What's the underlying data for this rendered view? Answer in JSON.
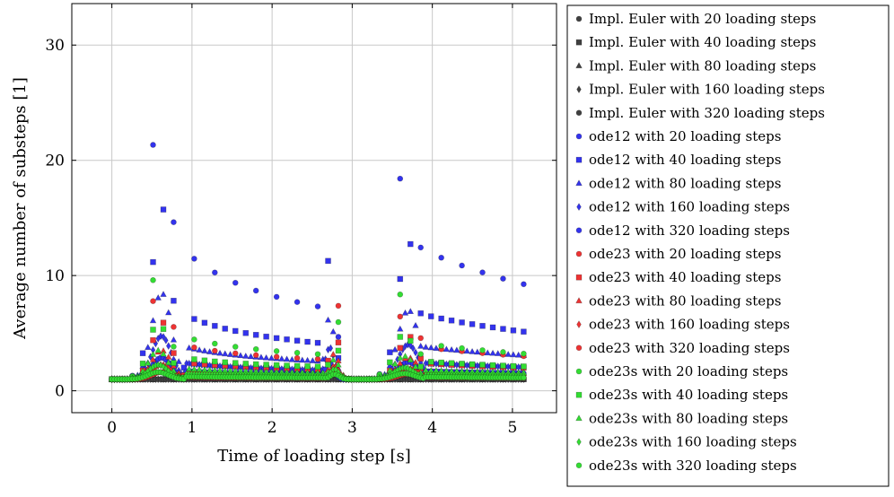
{
  "chart_data": {
    "type": "scatter",
    "xlabel": "Time of loading step [s]",
    "ylabel": "Average number of substeps [1]",
    "xlim": [
      -0.5,
      5.55
    ],
    "ylim": [
      -1.9,
      33.6
    ],
    "xticks": [
      0,
      1,
      2,
      3,
      4,
      5
    ],
    "yticks": [
      0,
      10,
      20,
      30
    ],
    "grid": true,
    "legend": "outside-right",
    "colors": {
      "impl": "#404040",
      "ode12": "#3333ee",
      "ode23": "#ee3333",
      "ode23s": "#33dd33"
    },
    "series": [
      {
        "name": "Impl. Euler with 20 loading steps",
        "color": "impl",
        "marker": "circle",
        "steps": 20,
        "x": [],
        "y": []
      },
      {
        "name": "Impl. Euler with 40 loading steps",
        "color": "impl",
        "marker": "square",
        "steps": 40,
        "x": [],
        "y": []
      },
      {
        "name": "Impl. Euler with 80 loading steps",
        "color": "impl",
        "marker": "triangle",
        "steps": 80,
        "x": [],
        "y": []
      },
      {
        "name": "Impl. Euler with 160 loading steps",
        "color": "impl",
        "marker": "diamond",
        "steps": 160,
        "x": [],
        "y": []
      },
      {
        "name": "Impl. Euler with 320 loading steps",
        "color": "impl",
        "marker": "pentagon",
        "steps": 320,
        "x": [],
        "y": []
      },
      {
        "name": "ode12 with 20 loading steps",
        "color": "ode12",
        "marker": "circle",
        "steps": 20,
        "x": [],
        "y": []
      },
      {
        "name": "ode12 with 40 loading steps",
        "color": "ode12",
        "marker": "square",
        "steps": 40,
        "x": [],
        "y": []
      },
      {
        "name": "ode12 with 80 loading steps",
        "color": "ode12",
        "marker": "triangle",
        "steps": 80,
        "x": [],
        "y": []
      },
      {
        "name": "ode12 with 160 loading steps",
        "color": "ode12",
        "marker": "diamond",
        "steps": 160,
        "x": [],
        "y": []
      },
      {
        "name": "ode12 with 320 loading steps",
        "color": "ode12",
        "marker": "pentagon",
        "steps": 320,
        "x": [],
        "y": []
      },
      {
        "name": "ode23 with 20 loading steps",
        "color": "ode23",
        "marker": "circle",
        "steps": 20,
        "x": [],
        "y": []
      },
      {
        "name": "ode23 with 40 loading steps",
        "color": "ode23",
        "marker": "square",
        "steps": 40,
        "x": [],
        "y": []
      },
      {
        "name": "ode23 with 80 loading steps",
        "color": "ode23",
        "marker": "triangle",
        "steps": 80,
        "x": [],
        "y": []
      },
      {
        "name": "ode23 with 160 loading steps",
        "color": "ode23",
        "marker": "diamond",
        "steps": 160,
        "x": [],
        "y": []
      },
      {
        "name": "ode23 with 320 loading steps",
        "color": "ode23",
        "marker": "pentagon",
        "steps": 320,
        "x": [],
        "y": []
      },
      {
        "name": "ode23s with 20 loading steps",
        "color": "ode23s",
        "marker": "circle",
        "steps": 20,
        "x": [],
        "y": []
      },
      {
        "name": "ode23s with 40 loading steps",
        "color": "ode23s",
        "marker": "square",
        "steps": 40,
        "x": [],
        "y": []
      },
      {
        "name": "ode23s with 80 loading steps",
        "color": "ode23s",
        "marker": "triangle",
        "steps": 80,
        "x": [],
        "y": []
      },
      {
        "name": "ode23s with 160 loading steps",
        "color": "ode23s",
        "marker": "diamond",
        "steps": 160,
        "x": [],
        "y": []
      },
      {
        "name": "ode23s with 320 loading steps",
        "color": "ode23s",
        "marker": "pentagon",
        "steps": 320,
        "x": [],
        "y": []
      }
    ]
  }
}
